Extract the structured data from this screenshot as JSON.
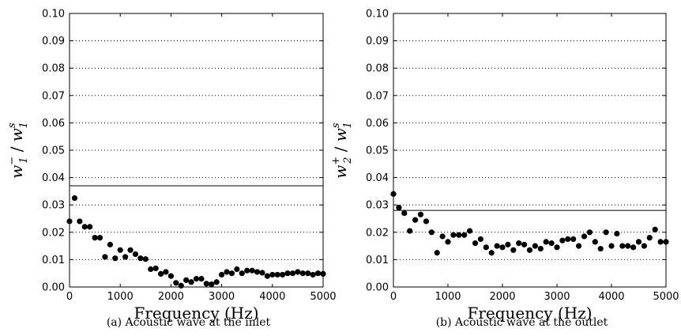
{
  "chart_data": [
    {
      "type": "scatter",
      "caption": "(a) Acoustic wave at the inlet",
      "xlabel": "Frequency (Hz)",
      "ylabel": {
        "base": "w",
        "sup": "−",
        "sub": "1",
        "sep": "/",
        "base2": "w",
        "sup2": "s",
        "sub2": "1"
      },
      "xlim": [
        0,
        5000
      ],
      "ylim": [
        0,
        0.1
      ],
      "xticks": [
        "0",
        "1000",
        "2000",
        "3000",
        "4000",
        "5000"
      ],
      "yticks": [
        "0.00",
        "0.01",
        "0.02",
        "0.03",
        "0.04",
        "0.05",
        "0.06",
        "0.07",
        "0.08",
        "0.09",
        "0.10"
      ],
      "grid": "horizontal dotted",
      "reference_line": 0.037,
      "points": [
        [
          0,
          0.024
        ],
        [
          100,
          0.0325
        ],
        [
          200,
          0.024
        ],
        [
          300,
          0.022
        ],
        [
          400,
          0.022
        ],
        [
          500,
          0.018
        ],
        [
          600,
          0.018
        ],
        [
          700,
          0.011
        ],
        [
          800,
          0.0155
        ],
        [
          900,
          0.0105
        ],
        [
          1000,
          0.0135
        ],
        [
          1100,
          0.011
        ],
        [
          1200,
          0.0135
        ],
        [
          1300,
          0.012
        ],
        [
          1400,
          0.0105
        ],
        [
          1500,
          0.0102
        ],
        [
          1600,
          0.0065
        ],
        [
          1700,
          0.0068
        ],
        [
          1800,
          0.0048
        ],
        [
          1900,
          0.0055
        ],
        [
          2000,
          0.004
        ],
        [
          2100,
          0.0015
        ],
        [
          2200,
          0.0005
        ],
        [
          2300,
          0.0025
        ],
        [
          2400,
          0.0018
        ],
        [
          2500,
          0.003
        ],
        [
          2600,
          0.003
        ],
        [
          2700,
          0.0012
        ],
        [
          2800,
          0.001
        ],
        [
          2900,
          0.0018
        ],
        [
          3000,
          0.0045
        ],
        [
          3100,
          0.0055
        ],
        [
          3200,
          0.005
        ],
        [
          3300,
          0.0065
        ],
        [
          3400,
          0.005
        ],
        [
          3500,
          0.006
        ],
        [
          3600,
          0.006
        ],
        [
          3700,
          0.0055
        ],
        [
          3800,
          0.0052
        ],
        [
          3900,
          0.004
        ],
        [
          4000,
          0.0045
        ],
        [
          4100,
          0.0045
        ],
        [
          4200,
          0.0045
        ],
        [
          4300,
          0.005
        ],
        [
          4400,
          0.005
        ],
        [
          4500,
          0.0055
        ],
        [
          4600,
          0.005
        ],
        [
          4700,
          0.005
        ],
        [
          4800,
          0.0045
        ],
        [
          4900,
          0.005
        ],
        [
          5000,
          0.0048
        ]
      ]
    },
    {
      "type": "scatter",
      "caption": "(b) Acoustic wave at the outlet",
      "xlabel": "Frequency (Hz)",
      "ylabel": {
        "base": "w",
        "sup": "+",
        "sub": "2",
        "sep": "/",
        "base2": "w",
        "sup2": "s",
        "sub2": "1"
      },
      "xlim": [
        0,
        5000
      ],
      "ylim": [
        0,
        0.1
      ],
      "xticks": [
        "0",
        "1000",
        "2000",
        "3000",
        "4000",
        "5000"
      ],
      "yticks": [
        "0.00",
        "0.01",
        "0.02",
        "0.03",
        "0.04",
        "0.05",
        "0.06",
        "0.07",
        "0.08",
        "0.09",
        "0.10"
      ],
      "grid": "horizontal dotted",
      "reference_line": 0.028,
      "points": [
        [
          0,
          0.034
        ],
        [
          100,
          0.029
        ],
        [
          200,
          0.027
        ],
        [
          300,
          0.0205
        ],
        [
          400,
          0.0245
        ],
        [
          500,
          0.0265
        ],
        [
          600,
          0.024
        ],
        [
          700,
          0.02
        ],
        [
          800,
          0.0125
        ],
        [
          900,
          0.0185
        ],
        [
          1000,
          0.0165
        ],
        [
          1100,
          0.019
        ],
        [
          1200,
          0.019
        ],
        [
          1300,
          0.019
        ],
        [
          1400,
          0.0205
        ],
        [
          1500,
          0.016
        ],
        [
          1600,
          0.0175
        ],
        [
          1700,
          0.0145
        ],
        [
          1800,
          0.0125
        ],
        [
          1900,
          0.015
        ],
        [
          2000,
          0.0145
        ],
        [
          2100,
          0.0155
        ],
        [
          2200,
          0.0135
        ],
        [
          2300,
          0.016
        ],
        [
          2400,
          0.0155
        ],
        [
          2500,
          0.0135
        ],
        [
          2600,
          0.015
        ],
        [
          2700,
          0.014
        ],
        [
          2800,
          0.0165
        ],
        [
          2900,
          0.016
        ],
        [
          3000,
          0.0145
        ],
        [
          3100,
          0.017
        ],
        [
          3200,
          0.0175
        ],
        [
          3300,
          0.0175
        ],
        [
          3400,
          0.015
        ],
        [
          3500,
          0.0185
        ],
        [
          3600,
          0.02
        ],
        [
          3700,
          0.0165
        ],
        [
          3800,
          0.014
        ],
        [
          3900,
          0.02
        ],
        [
          4000,
          0.015
        ],
        [
          4100,
          0.0195
        ],
        [
          4200,
          0.015
        ],
        [
          4300,
          0.015
        ],
        [
          4400,
          0.0145
        ],
        [
          4500,
          0.0165
        ],
        [
          4600,
          0.015
        ],
        [
          4700,
          0.018
        ],
        [
          4800,
          0.021
        ],
        [
          4900,
          0.0165
        ],
        [
          5000,
          0.0165
        ]
      ]
    }
  ]
}
